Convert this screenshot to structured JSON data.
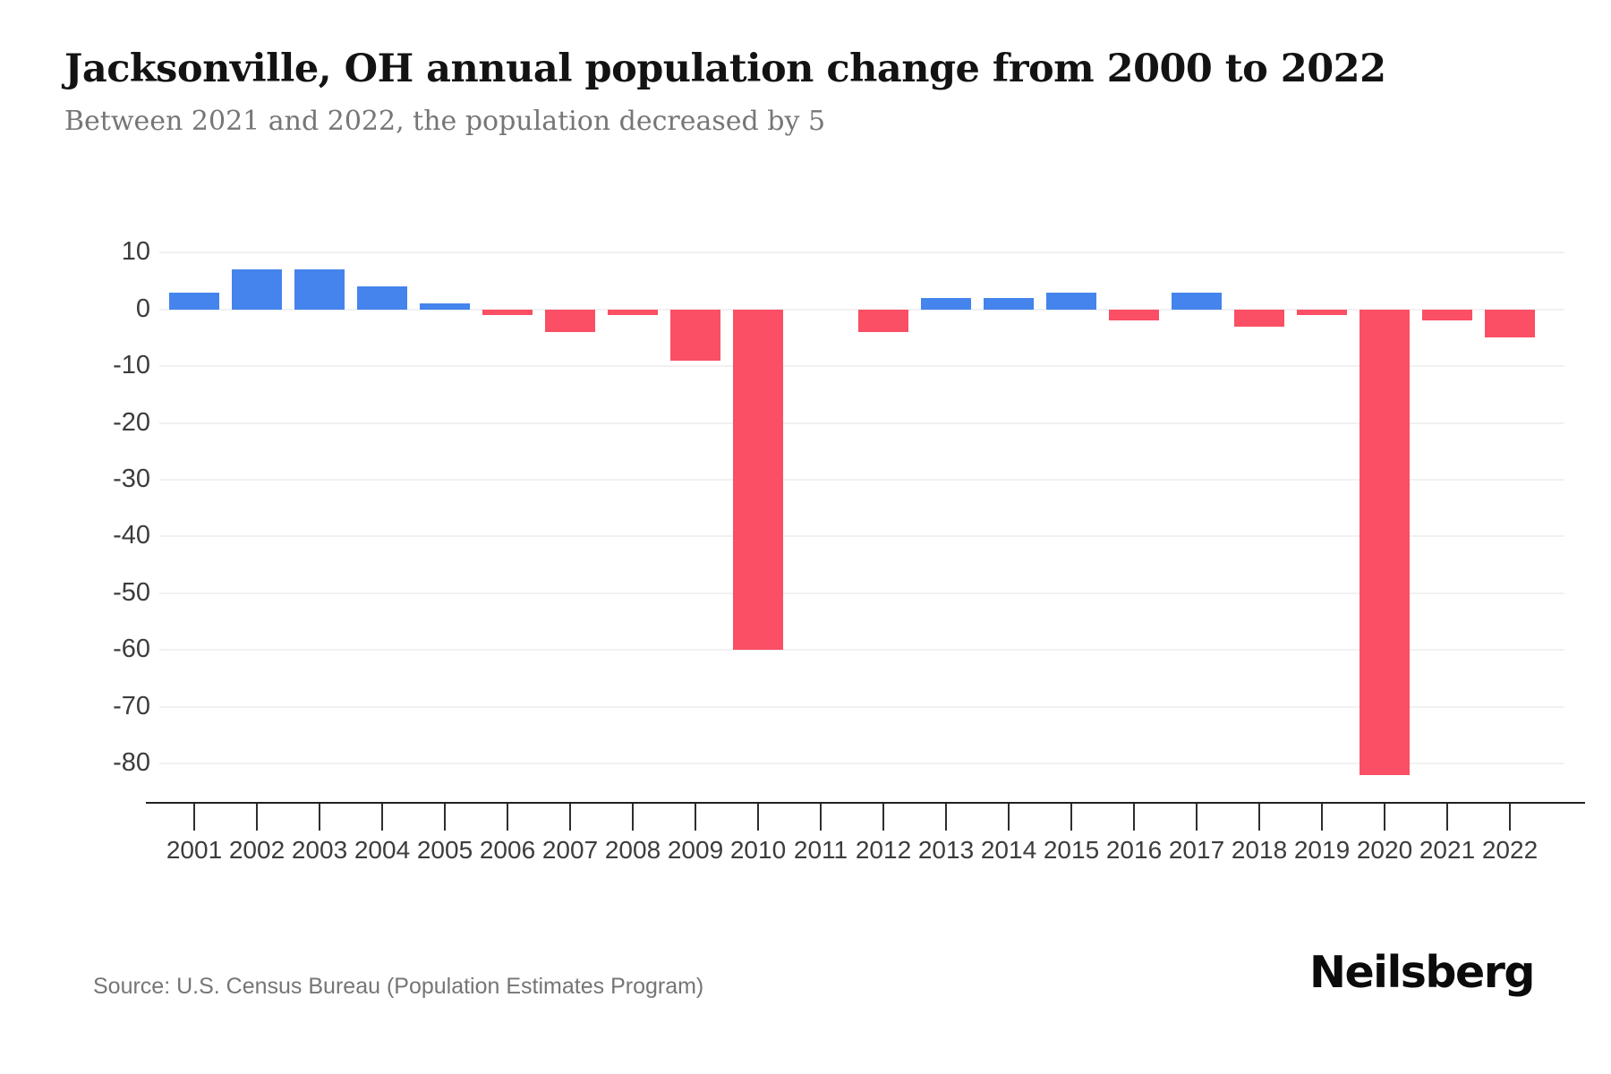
{
  "header": {
    "title": "Jacksonville, OH annual population change from 2000 to 2022",
    "subtitle": "Between 2021 and 2022, the population decreased by 5"
  },
  "chart_data": {
    "type": "bar",
    "title": "Jacksonville, OH annual population change from 2000 to 2022",
    "categories": [
      "2001",
      "2002",
      "2003",
      "2004",
      "2005",
      "2006",
      "2007",
      "2008",
      "2009",
      "2010",
      "2011",
      "2012",
      "2013",
      "2014",
      "2015",
      "2016",
      "2017",
      "2018",
      "2019",
      "2020",
      "2021",
      "2022"
    ],
    "values": [
      3,
      7,
      7,
      4,
      1,
      -1,
      -4,
      -1,
      -9,
      -60,
      0,
      -4,
      2,
      2,
      3,
      -2,
      3,
      -3,
      -1,
      -82,
      -2,
      -5
    ],
    "xlabel": "",
    "ylabel": "",
    "ylim": [
      -87,
      12
    ],
    "yticks": [
      10,
      0,
      -10,
      -20,
      -30,
      -40,
      -50,
      -60,
      -70,
      -80
    ],
    "grid": true,
    "legend": false,
    "colors": {
      "positive": "#4484ec",
      "negative": "#fa4f64",
      "gridline": "#f1f1f3",
      "axis": "#212121"
    }
  },
  "footer": {
    "source": "Source: U.S. Census Bureau (Population Estimates Program)",
    "brand": "Neilsberg"
  }
}
